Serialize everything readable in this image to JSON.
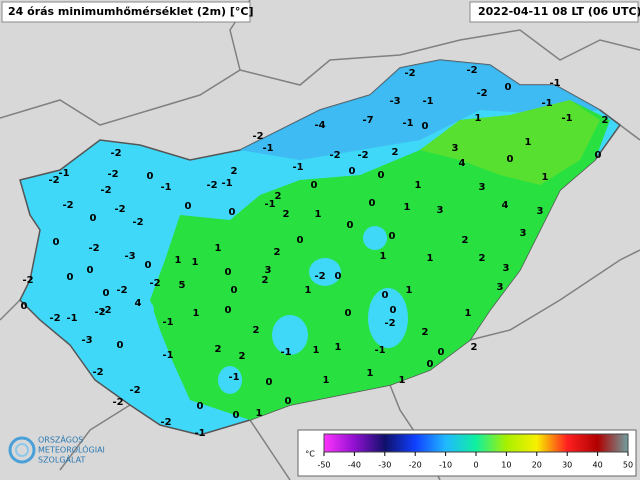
{
  "header": {
    "title": "24 órás minimumhőmérséklet (2m) [°C]",
    "timestamp": "2022-04-11 08 LT (06 UTC)"
  },
  "stations": [
    -2,
    -2,
    0,
    -1,
    -3,
    -1,
    -2,
    -1,
    -4,
    -7,
    -1,
    0,
    1,
    -1,
    2,
    -2,
    -1,
    -1,
    -2,
    -2,
    2,
    3,
    4,
    0,
    1,
    0,
    1,
    0,
    0,
    1,
    3,
    4,
    3,
    3,
    1,
    0,
    0,
    2,
    -1,
    2,
    1,
    2,
    -1,
    -2,
    -1,
    0,
    -2,
    -2,
    -1,
    -2,
    -2,
    -2,
    -2,
    0,
    -2,
    0,
    0,
    0,
    0,
    0,
    2,
    3,
    2,
    3,
    3,
    1,
    1,
    -2,
    0,
    2,
    3,
    2,
    0,
    0,
    1,
    1,
    1,
    0,
    -3,
    -2,
    0,
    0,
    0,
    -2,
    0,
    -2,
    4,
    -2,
    -2,
    -2,
    -1,
    -3,
    0,
    -2,
    5,
    -1,
    1,
    0,
    1,
    0,
    0,
    1,
    -2,
    0,
    2,
    1,
    0,
    2,
    0,
    -1,
    1,
    1,
    -1,
    2,
    2,
    2,
    -1,
    -1,
    0,
    1,
    1,
    1,
    0,
    1,
    0,
    0,
    -2,
    -2,
    -2,
    -2,
    -1,
    0
  ],
  "legend": {
    "unit": "°C",
    "ticks": [
      -50,
      -40,
      -30,
      -20,
      -10,
      0,
      10,
      20,
      30,
      40,
      50
    ],
    "colors": [
      "#ff33ff",
      "#9010d0",
      "#10106a",
      "#1040ff",
      "#20b8ff",
      "#10f0a0",
      "#a8f000",
      "#f8f000",
      "#ff2020",
      "#b00000",
      "#70a0a0"
    ]
  },
  "logo": {
    "lines": [
      "ORSZÁGOS",
      "METEOROLÓGIAI",
      "SZOLGÁLAT"
    ]
  }
}
